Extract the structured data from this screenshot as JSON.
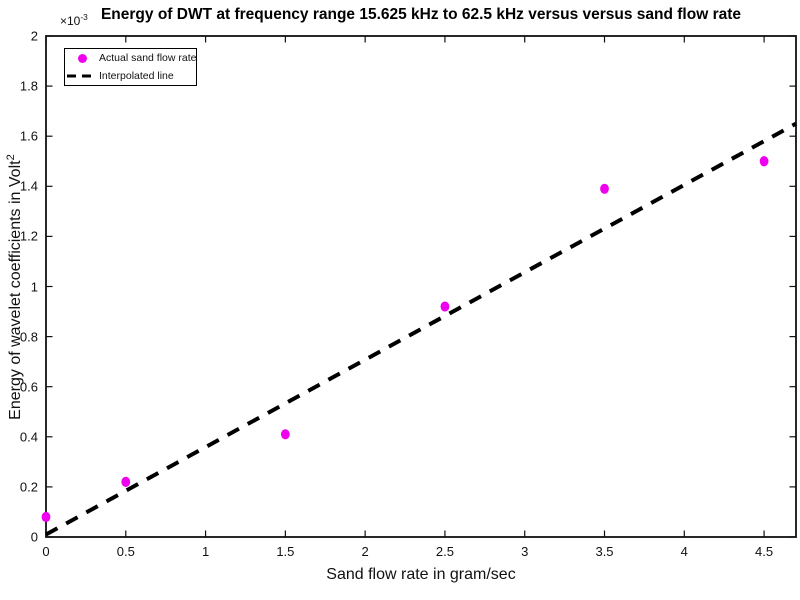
{
  "figure": {
    "background": "#ffffff",
    "axis_color": "#111111",
    "text_color": "#111111"
  },
  "chart_data": {
    "type": "scatter",
    "title": "Energy of DWT at frequency range 15.625 kHz to 62.5 kHz versus versus sand flow rate",
    "xlabel": "Sand flow rate in gram/sec",
    "ylabel": {
      "text": "Energy of wavelet coefficients in Volt",
      "sup": "2"
    },
    "y_axis_exponent": {
      "prefix": "×10",
      "sup": "-3"
    },
    "xlim": [
      0,
      4.7
    ],
    "ylim": [
      0,
      2
    ],
    "y_units_note": "y values are in units of 10^-3 Volt^2",
    "grid": false,
    "legend_position": "top-left",
    "xticks": {
      "values": [
        0,
        0.5,
        1,
        1.5,
        2,
        2.5,
        3,
        3.5,
        4,
        4.5
      ],
      "labels": [
        "0",
        "0.5",
        "1",
        "1.5",
        "2",
        "2.5",
        "3",
        "3.5",
        "4",
        "4.5"
      ]
    },
    "yticks": {
      "values": [
        0,
        0.2,
        0.4,
        0.6,
        0.8,
        1,
        1.2,
        1.4,
        1.6,
        1.8,
        2
      ],
      "labels": [
        "0",
        "0.2",
        "0.4",
        "0.6",
        "0.8",
        "1",
        "1.2",
        "1.4",
        "1.6",
        "1.8",
        "2"
      ]
    },
    "series": [
      {
        "name": "Actual sand flow rate",
        "type": "scatter",
        "marker": "filled-circle",
        "color": "#EE00EE",
        "x": [
          0,
          0.5,
          1.5,
          2.5,
          3.5,
          4.5
        ],
        "y": [
          0.08,
          0.22,
          0.41,
          0.92,
          1.39,
          1.5
        ]
      },
      {
        "name": "Interpolated line",
        "type": "line",
        "style": "dashed",
        "color": "#000000",
        "x": [
          0,
          4.7
        ],
        "y": [
          0.01,
          1.65
        ]
      }
    ]
  }
}
